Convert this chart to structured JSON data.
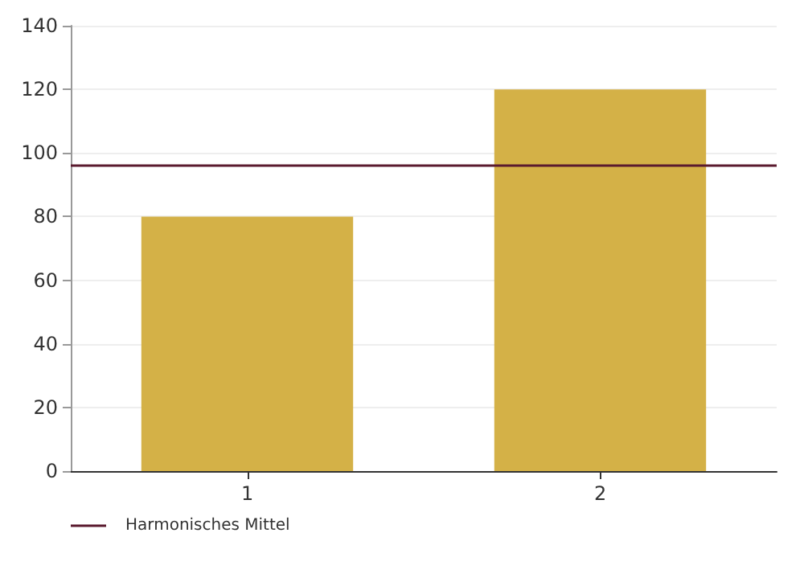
{
  "chart_data": {
    "type": "bar",
    "categories": [
      "1",
      "2"
    ],
    "values": [
      80,
      120
    ],
    "color": "#d4b147",
    "ylim": [
      0,
      140
    ],
    "yticks": [
      0,
      20,
      40,
      60,
      80,
      100,
      120,
      140
    ],
    "grid": "y",
    "legend": "bottom left",
    "ref_lines": [
      {
        "axis": "y",
        "value": 96,
        "label": "Harmonisches Mittel",
        "color": "#5a1a2e"
      }
    ]
  }
}
